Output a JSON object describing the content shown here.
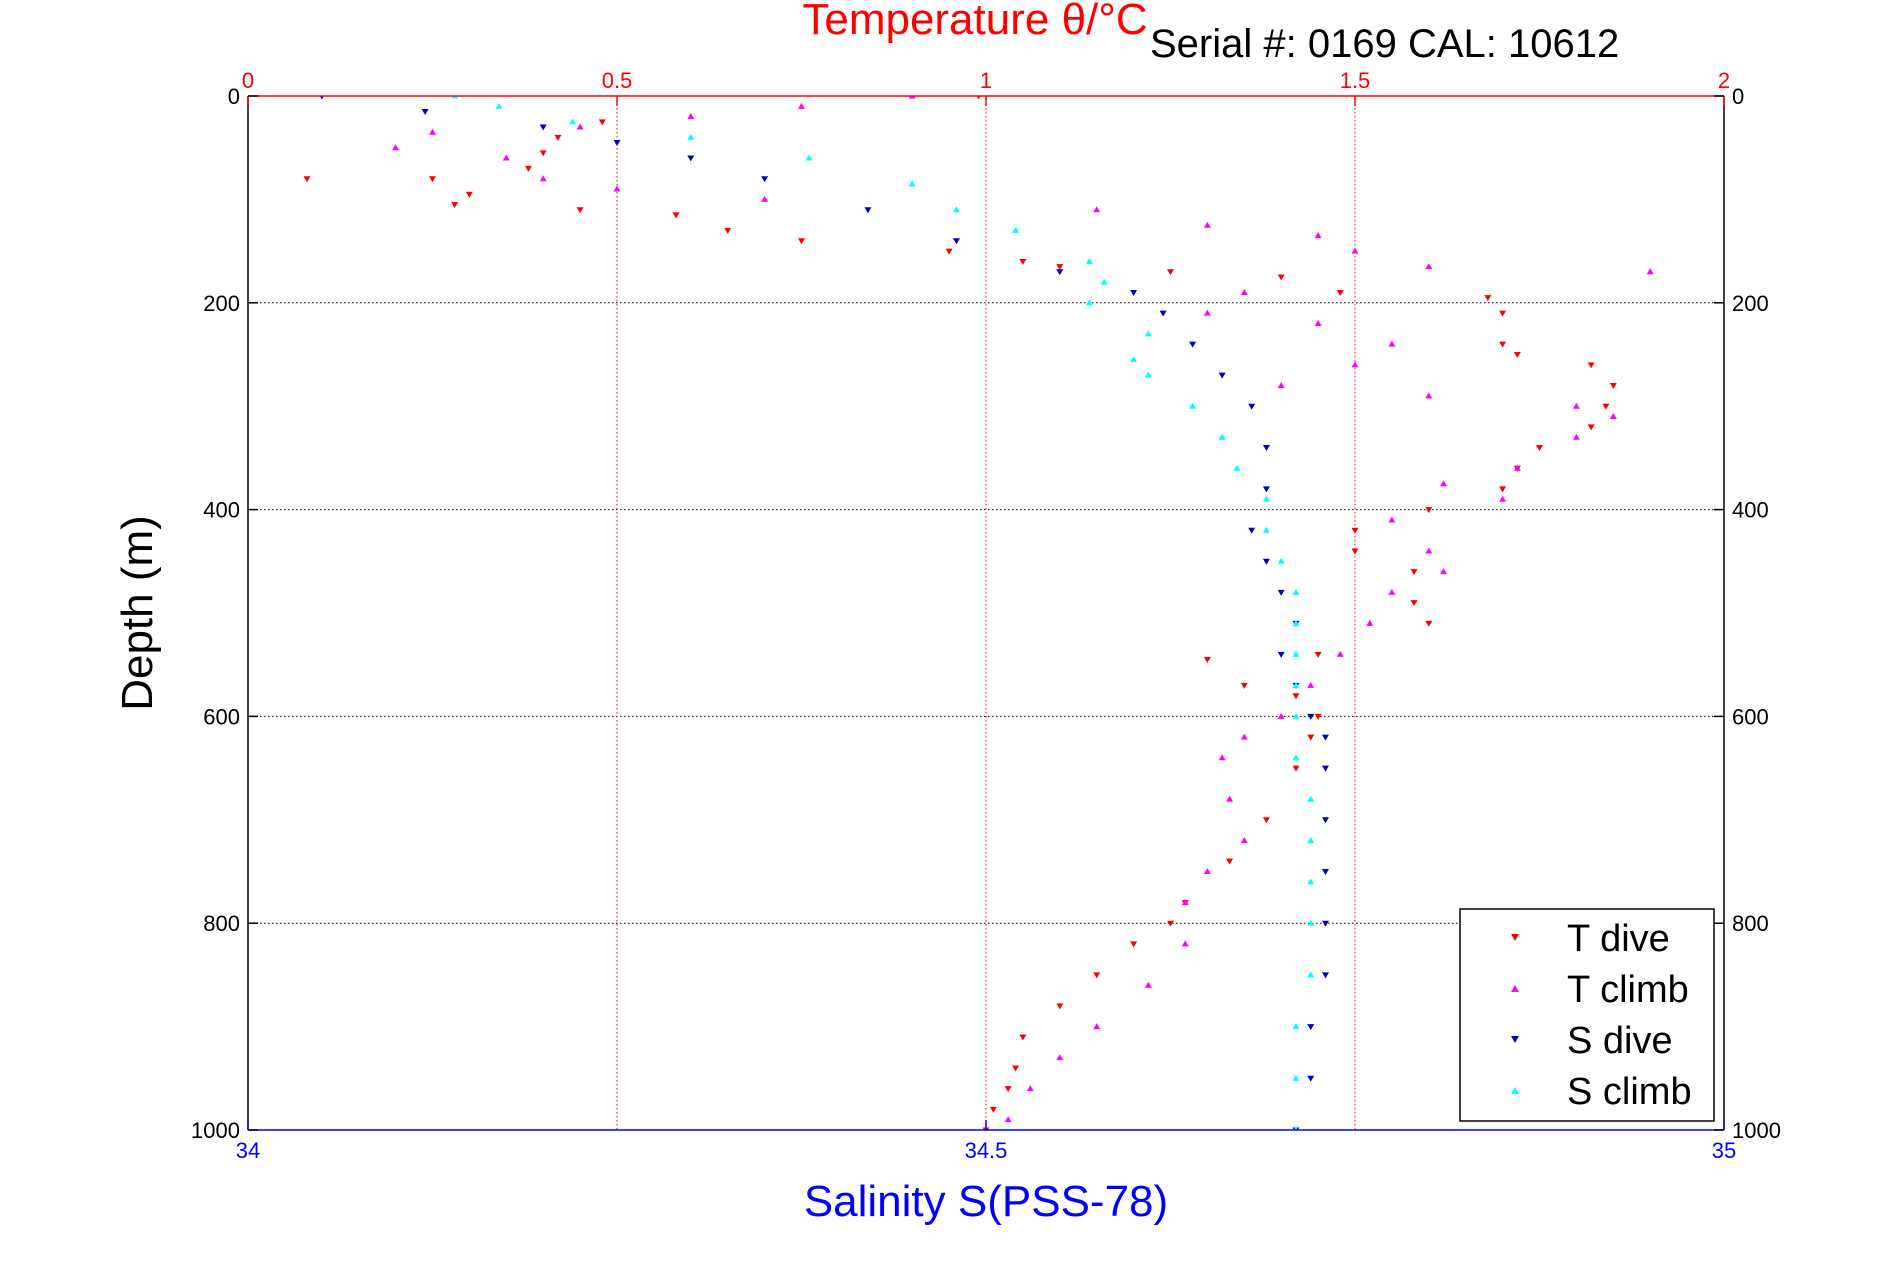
{
  "chart_data": {
    "type": "scatter",
    "title": "Temperature θ/°C",
    "annotation": "Serial #: 0169 CAL: 10612",
    "ylabel": "Depth (m)",
    "xlabel_bottom": "Salinity S(PSS-78)",
    "x_top": {
      "label": "Temperature θ/°C",
      "lim": [
        0,
        2
      ],
      "ticks": [
        0,
        0.5,
        1,
        1.5,
        2
      ],
      "tick_labels": [
        "0",
        "0.5",
        "1",
        "1.5",
        "2"
      ],
      "color": "#ff0000"
    },
    "x_bottom": {
      "label": "Salinity S(PSS-78)",
      "lim": [
        34,
        35
      ],
      "ticks": [
        34,
        34.5,
        35
      ],
      "tick_labels": [
        "34",
        "34.5",
        "35"
      ],
      "color": "#0000ff"
    },
    "y": {
      "lim": [
        0,
        1000
      ],
      "reversed": true,
      "ticks": [
        0,
        200,
        400,
        600,
        800,
        1000
      ],
      "tick_labels": [
        "0",
        "200",
        "400",
        "600",
        "800",
        "1000"
      ]
    },
    "grid": true,
    "legend_placement": "bottom-right",
    "series": [
      {
        "name": "T dive",
        "axis": "temperature",
        "color": "#ff0000",
        "marker": "triangle-down",
        "points": [
          [
            0.99,
            0
          ],
          [
            0.48,
            25
          ],
          [
            0.42,
            40
          ],
          [
            0.4,
            55
          ],
          [
            0.38,
            70
          ],
          [
            0.08,
            80
          ],
          [
            0.25,
            80
          ],
          [
            0.3,
            95
          ],
          [
            0.28,
            105
          ],
          [
            0.45,
            110
          ],
          [
            0.58,
            115
          ],
          [
            0.65,
            130
          ],
          [
            0.75,
            140
          ],
          [
            0.95,
            150
          ],
          [
            1.05,
            160
          ],
          [
            1.1,
            165
          ],
          [
            1.25,
            170
          ],
          [
            1.4,
            175
          ],
          [
            1.48,
            190
          ],
          [
            1.68,
            195
          ],
          [
            1.7,
            210
          ],
          [
            1.7,
            240
          ],
          [
            1.72,
            250
          ],
          [
            1.82,
            260
          ],
          [
            1.85,
            280
          ],
          [
            1.84,
            300
          ],
          [
            1.82,
            320
          ],
          [
            1.75,
            340
          ],
          [
            1.72,
            360
          ],
          [
            1.7,
            380
          ],
          [
            1.6,
            400
          ],
          [
            1.5,
            420
          ],
          [
            1.5,
            440
          ],
          [
            1.58,
            460
          ],
          [
            1.58,
            490
          ],
          [
            1.6,
            510
          ],
          [
            1.45,
            540
          ],
          [
            1.3,
            545
          ],
          [
            1.35,
            570
          ],
          [
            1.42,
            580
          ],
          [
            1.45,
            600
          ],
          [
            1.44,
            620
          ],
          [
            1.42,
            650
          ],
          [
            1.38,
            700
          ],
          [
            1.33,
            740
          ],
          [
            1.27,
            780
          ],
          [
            1.25,
            800
          ],
          [
            1.2,
            820
          ],
          [
            1.15,
            850
          ],
          [
            1.1,
            880
          ],
          [
            1.05,
            910
          ],
          [
            1.04,
            940
          ],
          [
            1.03,
            960
          ],
          [
            1.01,
            980
          ],
          [
            1.0,
            1000
          ]
        ]
      },
      {
        "name": "T climb",
        "axis": "temperature",
        "color": "#ff00ff",
        "marker": "triangle-up",
        "points": [
          [
            0.9,
            0
          ],
          [
            0.75,
            10
          ],
          [
            0.6,
            20
          ],
          [
            0.45,
            30
          ],
          [
            0.25,
            35
          ],
          [
            0.2,
            50
          ],
          [
            0.35,
            60
          ],
          [
            0.4,
            80
          ],
          [
            0.5,
            90
          ],
          [
            0.7,
            100
          ],
          [
            1.15,
            110
          ],
          [
            1.3,
            125
          ],
          [
            1.45,
            135
          ],
          [
            1.5,
            150
          ],
          [
            1.6,
            165
          ],
          [
            1.9,
            170
          ],
          [
            1.35,
            190
          ],
          [
            1.3,
            210
          ],
          [
            1.45,
            220
          ],
          [
            1.55,
            240
          ],
          [
            1.5,
            260
          ],
          [
            1.4,
            280
          ],
          [
            1.6,
            290
          ],
          [
            1.8,
            300
          ],
          [
            1.85,
            310
          ],
          [
            1.8,
            330
          ],
          [
            1.72,
            360
          ],
          [
            1.62,
            375
          ],
          [
            1.7,
            390
          ],
          [
            1.55,
            410
          ],
          [
            1.6,
            440
          ],
          [
            1.62,
            460
          ],
          [
            1.55,
            480
          ],
          [
            1.52,
            510
          ],
          [
            1.48,
            540
          ],
          [
            1.44,
            570
          ],
          [
            1.4,
            600
          ],
          [
            1.35,
            620
          ],
          [
            1.32,
            640
          ],
          [
            1.33,
            680
          ],
          [
            1.35,
            720
          ],
          [
            1.3,
            750
          ],
          [
            1.27,
            780
          ],
          [
            1.27,
            820
          ],
          [
            1.22,
            860
          ],
          [
            1.15,
            900
          ],
          [
            1.1,
            930
          ],
          [
            1.06,
            960
          ],
          [
            1.03,
            990
          ]
        ]
      },
      {
        "name": "S dive",
        "axis": "salinity",
        "color": "#0000cc",
        "marker": "triangle-down",
        "points": [
          [
            34.05,
            0
          ],
          [
            34.12,
            15
          ],
          [
            34.2,
            30
          ],
          [
            34.25,
            45
          ],
          [
            34.3,
            60
          ],
          [
            34.35,
            80
          ],
          [
            34.42,
            110
          ],
          [
            34.48,
            140
          ],
          [
            34.55,
            170
          ],
          [
            34.6,
            190
          ],
          [
            34.62,
            210
          ],
          [
            34.64,
            240
          ],
          [
            34.66,
            270
          ],
          [
            34.68,
            300
          ],
          [
            34.69,
            340
          ],
          [
            34.69,
            380
          ],
          [
            34.68,
            420
          ],
          [
            34.69,
            450
          ],
          [
            34.7,
            480
          ],
          [
            34.71,
            510
          ],
          [
            34.7,
            540
          ],
          [
            34.71,
            570
          ],
          [
            34.72,
            600
          ],
          [
            34.73,
            620
          ],
          [
            34.73,
            650
          ],
          [
            34.73,
            700
          ],
          [
            34.73,
            750
          ],
          [
            34.73,
            800
          ],
          [
            34.73,
            850
          ],
          [
            34.72,
            900
          ],
          [
            34.72,
            950
          ],
          [
            34.71,
            1000
          ]
        ]
      },
      {
        "name": "S climb",
        "axis": "salinity",
        "color": "#00ffff",
        "marker": "triangle-up",
        "points": [
          [
            34.14,
            0
          ],
          [
            34.17,
            10
          ],
          [
            34.22,
            25
          ],
          [
            34.3,
            40
          ],
          [
            34.38,
            60
          ],
          [
            34.45,
            85
          ],
          [
            34.48,
            110
          ],
          [
            34.52,
            130
          ],
          [
            34.57,
            160
          ],
          [
            34.58,
            180
          ],
          [
            34.57,
            200
          ],
          [
            34.61,
            230
          ],
          [
            34.6,
            255
          ],
          [
            34.61,
            270
          ],
          [
            34.64,
            300
          ],
          [
            34.66,
            330
          ],
          [
            34.67,
            360
          ],
          [
            34.69,
            390
          ],
          [
            34.69,
            420
          ],
          [
            34.7,
            450
          ],
          [
            34.71,
            480
          ],
          [
            34.71,
            510
          ],
          [
            34.71,
            540
          ],
          [
            34.71,
            570
          ],
          [
            34.71,
            600
          ],
          [
            34.71,
            640
          ],
          [
            34.72,
            680
          ],
          [
            34.72,
            720
          ],
          [
            34.72,
            760
          ],
          [
            34.72,
            800
          ],
          [
            34.72,
            850
          ],
          [
            34.71,
            900
          ],
          [
            34.71,
            950
          ],
          [
            34.71,
            1000
          ]
        ]
      }
    ]
  }
}
